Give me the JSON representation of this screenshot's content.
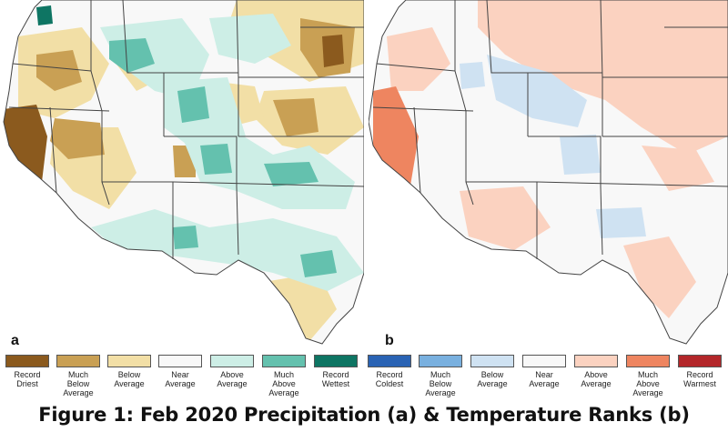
{
  "panels": [
    {
      "letter": "a"
    },
    {
      "letter": "b"
    }
  ],
  "legend": [
    {
      "label": "Record\nDriest",
      "color": "#8b5a1e"
    },
    {
      "label": "Much\nBelow\nAverage",
      "color": "#c9a054"
    },
    {
      "label": "Below\nAverage",
      "color": "#f2dfa6"
    },
    {
      "label": "Near\nAverage",
      "color": "#f8f8f8"
    },
    {
      "label": "Above\nAverage",
      "color": "#cdeee6"
    },
    {
      "label": "Much\nAbove\nAverage",
      "color": "#64c1ae"
    },
    {
      "label": "Record\nWettest",
      "color": "#0e7563"
    },
    {
      "label": "Record\nColdest",
      "color": "#2a63b4"
    },
    {
      "label": "Much\nBelow\nAverage",
      "color": "#79b0df"
    },
    {
      "label": "Below\nAverage",
      "color": "#cfe2f2"
    },
    {
      "label": "Near\nAverage",
      "color": "#f8f8f8"
    },
    {
      "label": "Above\nAverage",
      "color": "#fbd2c0"
    },
    {
      "label": "Much\nAbove\nAverage",
      "color": "#ee8560"
    },
    {
      "label": "Record\nWarmest",
      "color": "#b3272a"
    }
  ],
  "caption": "Figure 1: Feb 2020 Precipitation (a) & Temperature Ranks (b)"
}
